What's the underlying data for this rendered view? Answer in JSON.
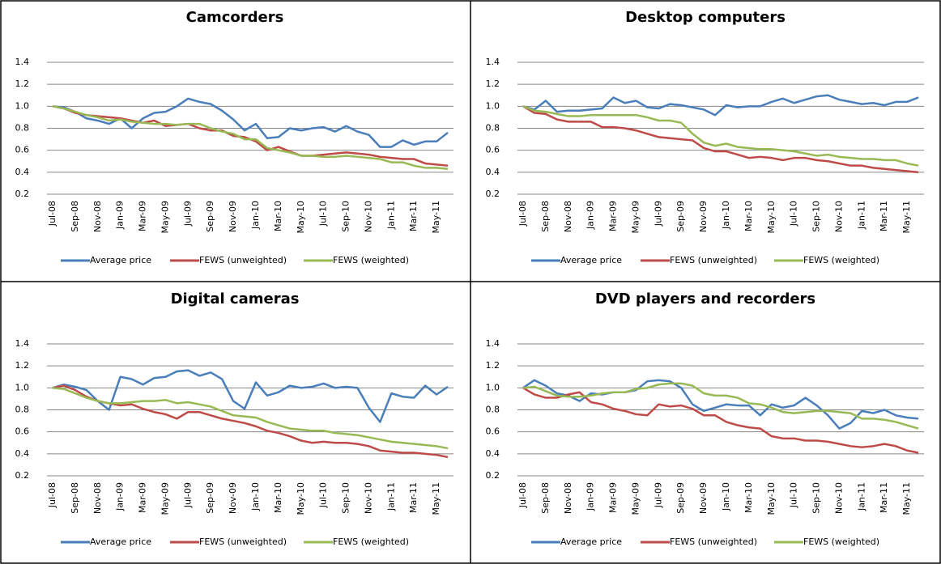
{
  "chart_data": [
    {
      "type": "line",
      "title": "Camcorders",
      "legend": "bottom",
      "grid": true,
      "categories": [
        "Jul-08",
        null,
        "Sep-08",
        null,
        "Nov-08",
        null,
        "Jan-09",
        null,
        "Mar-09",
        null,
        "May-09",
        null,
        "Jul-09",
        null,
        "Sep-09",
        null,
        "Nov-09",
        null,
        "Jan-10",
        null,
        "Mar-10",
        null,
        "May-10",
        null,
        "Jul-10",
        null,
        "Sep-10",
        null,
        "Nov-10",
        null,
        "Jan-11",
        null,
        "Mar-11",
        null,
        "May-11",
        null
      ],
      "ylim": [
        0.2,
        1.4
      ],
      "yticks": [
        0.2,
        0.4,
        0.6,
        0.8,
        {
          "value": 1,
          "label": "1.0"
        },
        1.2,
        1.4
      ],
      "series": [
        {
          "name": "Average price",
          "color": "#4a7ebb",
          "values": [
            1.0,
            0.99,
            0.95,
            0.89,
            0.87,
            0.84,
            0.89,
            0.8,
            0.89,
            0.94,
            0.95,
            1.0,
            1.07,
            1.04,
            1.02,
            0.96,
            0.88,
            0.78,
            0.84,
            0.71,
            0.72,
            0.8,
            0.78,
            0.8,
            0.81,
            0.77,
            0.82,
            0.77,
            0.74,
            0.63,
            0.63,
            0.69,
            0.65,
            0.68,
            0.68,
            0.76
          ]
        },
        {
          "name": "FEWS (unweighted)",
          "color": "#be4b48",
          "values": [
            1.0,
            0.98,
            0.94,
            0.92,
            0.91,
            0.9,
            0.89,
            0.87,
            0.85,
            0.87,
            0.82,
            0.83,
            0.84,
            0.8,
            0.78,
            0.78,
            0.73,
            0.72,
            0.68,
            0.6,
            0.63,
            0.59,
            0.55,
            0.55,
            0.56,
            0.57,
            0.58,
            0.57,
            0.56,
            0.54,
            0.53,
            0.52,
            0.52,
            0.48,
            0.47,
            0.46
          ]
        },
        {
          "name": "FEWS (weighted)",
          "color": "#98b954",
          "values": [
            1.0,
            0.98,
            0.95,
            0.92,
            0.9,
            0.87,
            0.88,
            0.86,
            0.85,
            0.84,
            0.84,
            0.83,
            0.84,
            0.84,
            0.8,
            0.77,
            0.75,
            0.7,
            0.7,
            0.62,
            0.6,
            0.58,
            0.55,
            0.55,
            0.54,
            0.54,
            0.55,
            0.54,
            0.53,
            0.52,
            0.49,
            0.49,
            0.46,
            0.44,
            0.44,
            0.43
          ]
        }
      ]
    },
    {
      "type": "line",
      "title": "Desktop computers",
      "legend": "bottom",
      "grid": true,
      "categories": [
        "Jul-08",
        null,
        "Sep-08",
        null,
        "Nov-08",
        null,
        "Jan-09",
        null,
        "Mar-09",
        null,
        "May-09",
        null,
        "Jul-09",
        null,
        "Sep-09",
        null,
        "Nov-09",
        null,
        "Jan-10",
        null,
        "Mar-10",
        null,
        "May-10",
        null,
        "Jul-10",
        null,
        "Sep-10",
        null,
        "Nov-10",
        null,
        "Jan-11",
        null,
        "Mar-11",
        null,
        "May-11",
        null
      ],
      "ylim": [
        0.2,
        1.4
      ],
      "yticks": [
        0.2,
        0.4,
        0.6,
        0.8,
        {
          "value": 1,
          "label": "1.0"
        },
        1.2,
        1.4
      ],
      "series": [
        {
          "name": "Average price",
          "color": "#4a7ebb",
          "values": [
            1.0,
            0.97,
            1.05,
            0.95,
            0.96,
            0.96,
            0.97,
            0.98,
            1.08,
            1.03,
            1.05,
            0.99,
            0.98,
            1.02,
            1.01,
            0.99,
            0.97,
            0.92,
            1.01,
            0.99,
            1.0,
            1.0,
            1.04,
            1.07,
            1.03,
            1.06,
            1.09,
            1.1,
            1.06,
            1.04,
            1.02,
            1.03,
            1.01,
            1.04,
            1.04,
            1.08
          ]
        },
        {
          "name": "FEWS (unweighted)",
          "color": "#be4b48",
          "values": [
            1.0,
            0.94,
            0.93,
            0.88,
            0.86,
            0.86,
            0.86,
            0.81,
            0.81,
            0.8,
            0.78,
            0.75,
            0.72,
            0.71,
            0.7,
            0.69,
            0.62,
            0.59,
            0.59,
            0.56,
            0.53,
            0.54,
            0.53,
            0.51,
            0.53,
            0.53,
            0.51,
            0.5,
            0.48,
            0.46,
            0.46,
            0.44,
            0.43,
            0.42,
            0.41,
            0.4
          ]
        },
        {
          "name": "FEWS (weighted)",
          "color": "#98b954",
          "values": [
            1.0,
            0.96,
            0.95,
            0.93,
            0.91,
            0.91,
            0.92,
            0.92,
            0.92,
            0.92,
            0.92,
            0.9,
            0.87,
            0.87,
            0.85,
            0.75,
            0.67,
            0.64,
            0.66,
            0.63,
            0.62,
            0.61,
            0.61,
            0.6,
            0.59,
            0.57,
            0.55,
            0.56,
            0.54,
            0.53,
            0.52,
            0.52,
            0.51,
            0.51,
            0.48,
            0.46
          ]
        }
      ]
    },
    {
      "type": "line",
      "title": "Digital cameras",
      "legend": "bottom",
      "grid": true,
      "categories": [
        "Jul-08",
        null,
        "Sep-08",
        null,
        "Nov-08",
        null,
        "Jan-09",
        null,
        "Mar-09",
        null,
        "May-09",
        null,
        "Jul-09",
        null,
        "Sep-09",
        null,
        "Nov-09",
        null,
        "Jan-10",
        null,
        "Mar-10",
        null,
        "May-10",
        null,
        "Jul-10",
        null,
        "Sep-10",
        null,
        "Nov-10",
        null,
        "Jan-11",
        null,
        "Mar-11",
        null,
        "May-11",
        null
      ],
      "ylim": [
        0.2,
        1.4
      ],
      "yticks": [
        0.2,
        0.4,
        0.6,
        0.8,
        {
          "value": 1,
          "label": "1.0"
        },
        1.2,
        1.4
      ],
      "series": [
        {
          "name": "Average price",
          "color": "#4a7ebb",
          "values": [
            1.0,
            1.03,
            1.01,
            0.98,
            0.88,
            0.8,
            1.1,
            1.08,
            1.03,
            1.09,
            1.1,
            1.15,
            1.16,
            1.11,
            1.14,
            1.08,
            0.88,
            0.81,
            1.05,
            0.93,
            0.96,
            1.02,
            1.0,
            1.01,
            1.04,
            1.0,
            1.01,
            1.0,
            0.82,
            0.69,
            0.95,
            0.92,
            0.91,
            1.02,
            0.94,
            1.01
          ]
        },
        {
          "name": "FEWS (unweighted)",
          "color": "#be4b48",
          "values": [
            1.0,
            1.02,
            0.98,
            0.92,
            0.88,
            0.86,
            0.84,
            0.85,
            0.81,
            0.78,
            0.76,
            0.72,
            0.78,
            0.78,
            0.75,
            0.72,
            0.7,
            0.68,
            0.65,
            0.61,
            0.59,
            0.56,
            0.52,
            0.5,
            0.51,
            0.5,
            0.5,
            0.49,
            0.47,
            0.43,
            0.42,
            0.41,
            0.41,
            0.4,
            0.39,
            0.37
          ]
        },
        {
          "name": "FEWS (weighted)",
          "color": "#98b954",
          "values": [
            1.0,
            0.99,
            0.95,
            0.91,
            0.88,
            0.86,
            0.86,
            0.87,
            0.88,
            0.88,
            0.89,
            0.86,
            0.87,
            0.85,
            0.83,
            0.79,
            0.75,
            0.74,
            0.73,
            0.69,
            0.66,
            0.63,
            0.62,
            0.61,
            0.61,
            0.59,
            0.58,
            0.57,
            0.55,
            0.53,
            0.51,
            0.5,
            0.49,
            0.48,
            0.47,
            0.45
          ]
        }
      ]
    },
    {
      "type": "line",
      "title": "DVD players and recorders",
      "legend": "bottom",
      "grid": true,
      "categories": [
        "Jul-08",
        null,
        "Sep-08",
        null,
        "Nov-08",
        null,
        "Jan-09",
        null,
        "Mar-09",
        null,
        "May-09",
        null,
        "Jul-09",
        null,
        "Sep-09",
        null,
        "Nov-09",
        null,
        "Jan-10",
        null,
        "Mar-10",
        null,
        "May-10",
        null,
        "Jul-10",
        null,
        "Sep-10",
        null,
        "Nov-10",
        null,
        "Jan-11",
        null,
        "Mar-11",
        null,
        "May-11",
        null
      ],
      "ylim": [
        0.2,
        1.4
      ],
      "yticks": [
        0.2,
        0.4,
        0.6,
        0.8,
        {
          "value": 1,
          "label": "1.0"
        },
        1.2,
        1.4
      ],
      "series": [
        {
          "name": "Average price",
          "color": "#4a7ebb",
          "values": [
            1.0,
            1.07,
            1.02,
            0.95,
            0.93,
            0.88,
            0.95,
            0.94,
            0.96,
            0.96,
            0.98,
            1.06,
            1.07,
            1.06,
            1.0,
            0.85,
            0.79,
            0.82,
            0.85,
            0.84,
            0.84,
            0.75,
            0.85,
            0.82,
            0.84,
            0.91,
            0.84,
            0.75,
            0.63,
            0.68,
            0.79,
            0.77,
            0.8,
            0.75,
            0.73,
            0.72
          ]
        },
        {
          "name": "FEWS (unweighted)",
          "color": "#be4b48",
          "values": [
            1.0,
            0.94,
            0.91,
            0.91,
            0.94,
            0.96,
            0.87,
            0.85,
            0.81,
            0.79,
            0.76,
            0.75,
            0.85,
            0.83,
            0.84,
            0.81,
            0.75,
            0.75,
            0.69,
            0.66,
            0.64,
            0.63,
            0.56,
            0.54,
            0.54,
            0.52,
            0.52,
            0.51,
            0.49,
            0.47,
            0.46,
            0.47,
            0.49,
            0.47,
            0.43,
            0.41
          ]
        },
        {
          "name": "FEWS (weighted)",
          "color": "#98b954",
          "values": [
            1.0,
            1.01,
            0.97,
            0.93,
            0.92,
            0.92,
            0.93,
            0.95,
            0.96,
            0.96,
            0.99,
            1.0,
            1.03,
            1.04,
            1.04,
            1.02,
            0.95,
            0.93,
            0.93,
            0.91,
            0.86,
            0.85,
            0.82,
            0.78,
            0.77,
            0.78,
            0.79,
            0.79,
            0.78,
            0.77,
            0.72,
            0.72,
            0.71,
            0.69,
            0.66,
            0.63
          ]
        }
      ]
    }
  ]
}
